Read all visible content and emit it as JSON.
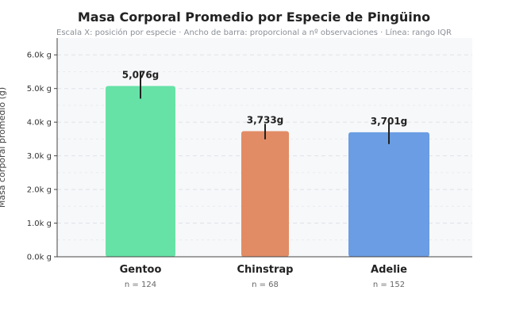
{
  "chart_data": {
    "type": "bar",
    "title": "Masa Corporal Promedio por Especie de Pingüino",
    "subtitle": "Escala X: posición por especie · Ancho de barra: proporcional a nº observaciones · Línea: rango IQR",
    "ylabel": "Masa corporal promedio (g)",
    "xlabel": "",
    "ylim": [
      0,
      6500
    ],
    "yticks": [
      0,
      1000,
      2000,
      3000,
      4000,
      5000,
      6000
    ],
    "ytick_labels": [
      "0.0k g",
      "1.0k g",
      "2.0k g",
      "3.0k g",
      "4.0k g",
      "5.0k g",
      "6.0k g"
    ],
    "grid": true,
    "categories": [
      "Gentoo",
      "Chinstrap",
      "Adelie"
    ],
    "values": [
      5076,
      3733,
      3701
    ],
    "value_labels": [
      "5,076g",
      "3,733g",
      "3,701g"
    ],
    "counts": [
      124,
      68,
      152
    ],
    "count_labels": [
      "n = 124",
      "n = 68",
      "n = 152"
    ],
    "iqr": [
      [
        4700,
        5500
      ],
      [
        3490,
        3950
      ],
      [
        3350,
        4000
      ]
    ],
    "colors": [
      "#66e2a6",
      "#e28c65",
      "#6a9de3"
    ]
  }
}
